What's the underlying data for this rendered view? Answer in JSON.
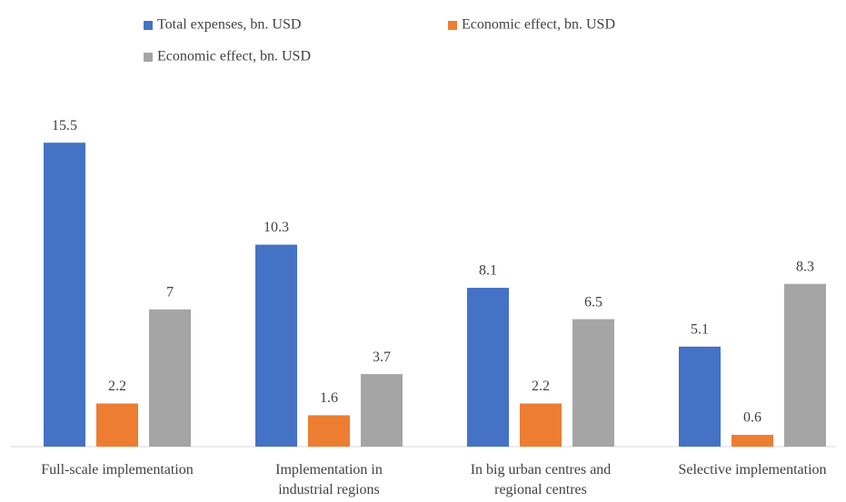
{
  "chart_data": {
    "type": "bar",
    "categories": [
      "Full-scale implementation",
      "Implementation in industrial regions",
      "In big urban centres and regional centres",
      "Selective implementation"
    ],
    "series": [
      {
        "name": "Total expenses, bn. USD",
        "color": "#4472c4",
        "values": [
          15.5,
          10.3,
          8.1,
          5.1
        ]
      },
      {
        "name": "Economic effect, bn. USD",
        "color": "#ed7d31",
        "values": [
          2.2,
          1.6,
          2.2,
          0.6
        ]
      },
      {
        "name": "Economic effect, bn. USD",
        "color": "#a5a5a5",
        "values": [
          7,
          3.7,
          6.5,
          8.3
        ]
      }
    ],
    "ylim": [
      0,
      16
    ],
    "legend": "top"
  }
}
